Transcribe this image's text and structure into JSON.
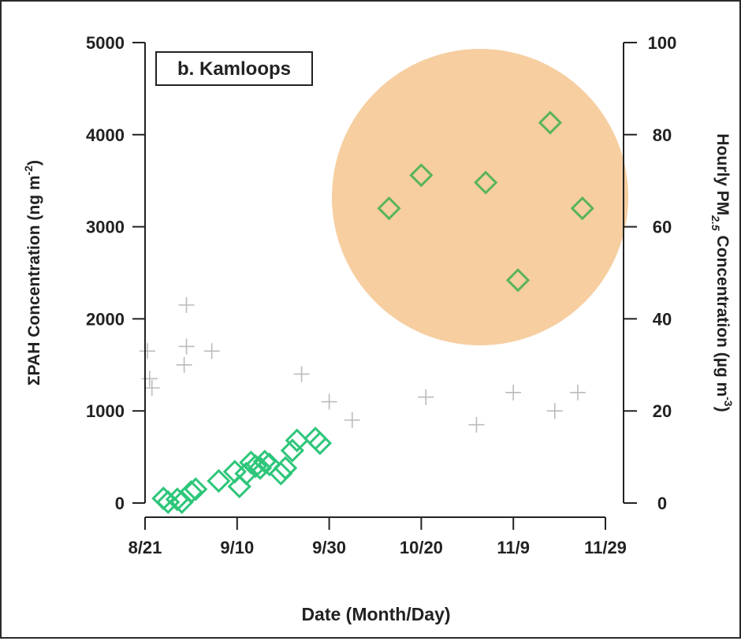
{
  "chart_data": {
    "type": "scatter",
    "panel_label": "b. Kamloops",
    "xlabel": "Date (Month/Day)",
    "ylabel_left": {
      "main": "ΣPAH Concentration (ng m",
      "sup": "-2",
      "close": ")"
    },
    "ylabel_right": {
      "pre": "Hourly PM",
      "sub": "2.5",
      "post": " Concentration (µg m",
      "sup": "-3",
      "close": ")"
    },
    "x_axis": {
      "unit": "days since 8/21",
      "range": [
        0,
        100
      ],
      "ticks": [
        {
          "value": 0,
          "label": "8/21"
        },
        {
          "value": 20,
          "label": "9/10"
        },
        {
          "value": 40,
          "label": "9/30"
        },
        {
          "value": 60,
          "label": "10/20"
        },
        {
          "value": 80,
          "label": "11/9"
        },
        {
          "value": 100,
          "label": "11/29"
        }
      ]
    },
    "y_left": {
      "range": [
        0,
        5000
      ],
      "ticks": [
        0,
        1000,
        2000,
        3000,
        4000,
        5000
      ]
    },
    "y_right": {
      "range": [
        0,
        100
      ],
      "ticks": [
        0,
        20,
        40,
        60,
        80,
        100
      ]
    },
    "highlight_circle_color": "#f5c58f",
    "series": [
      {
        "marker": "diamond",
        "axis": "left",
        "color": "#2ec67a",
        "points": [
          [
            4,
            50
          ],
          [
            5,
            10
          ],
          [
            7,
            40
          ],
          [
            8,
            10
          ],
          [
            10,
            120
          ],
          [
            11,
            150
          ],
          [
            16,
            240
          ],
          [
            19.5,
            340
          ],
          [
            20.5,
            180
          ],
          [
            22,
            320
          ],
          [
            23,
            440
          ],
          [
            24,
            400
          ],
          [
            25,
            380
          ],
          [
            26,
            450
          ],
          [
            27,
            420
          ],
          [
            29.5,
            320
          ],
          [
            30.5,
            380
          ],
          [
            32,
            570
          ],
          [
            33,
            680
          ],
          [
            37,
            700
          ],
          [
            38,
            650
          ]
        ]
      },
      {
        "marker": "diamond",
        "axis": "left",
        "color": "#5ab45a",
        "points": [
          [
            53,
            3200
          ],
          [
            60,
            3560
          ],
          [
            74,
            3480
          ],
          [
            81,
            2420
          ],
          [
            88,
            4130
          ],
          [
            95,
            3200
          ]
        ]
      },
      {
        "marker": "plus",
        "axis": "right",
        "color": "#bbbbbb",
        "points": [
          [
            9,
            43
          ],
          [
            9,
            34
          ],
          [
            8.5,
            30
          ],
          [
            14.5,
            33
          ],
          [
            34,
            28
          ],
          [
            0.5,
            33
          ],
          [
            1,
            27
          ],
          [
            1.5,
            25
          ],
          [
            61,
            23
          ],
          [
            80,
            24
          ],
          [
            94,
            24
          ],
          [
            89,
            20
          ],
          [
            72,
            17
          ],
          [
            40,
            22
          ],
          [
            45,
            18
          ]
        ]
      }
    ]
  }
}
